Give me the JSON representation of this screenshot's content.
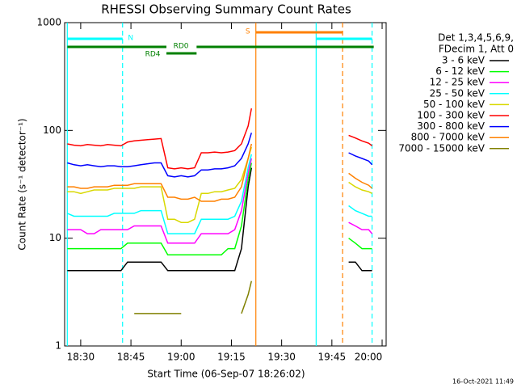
{
  "chart_data": {
    "type": "line",
    "title": "RHESSI Observing Summary Count Rates",
    "x_label": "Start Time (06-Sep-07 18:26:02)",
    "y_label": "Count Rate (s⁻¹ detector⁻¹)",
    "legend_header": [
      "Det 1,3,4,5,6,9,",
      "FDecim 1, Att 0"
    ],
    "footer": "16-Oct-2021 11:49",
    "y_log": true,
    "ylim": [
      1,
      1000
    ],
    "yticks": [
      1,
      10,
      100,
      1000
    ],
    "xlim": [
      25.2,
      121.2
    ],
    "xticks": [
      {
        "value": 30,
        "label": "18:30"
      },
      {
        "value": 45,
        "label": "18:45"
      },
      {
        "value": 60,
        "label": "19:00"
      },
      {
        "value": 75,
        "label": "19:15"
      },
      {
        "value": 90,
        "label": "19:30"
      },
      {
        "value": 105,
        "label": "19:45"
      },
      {
        "value": 120,
        "label": "20:00"
      }
    ],
    "x": [
      26,
      28,
      30,
      32,
      34,
      36,
      38,
      40,
      42,
      44,
      46,
      48,
      50,
      52,
      54,
      56,
      58,
      60,
      62,
      64,
      66,
      68,
      70,
      72,
      74,
      76,
      78,
      80,
      81,
      90,
      110,
      112,
      114,
      116,
      117
    ],
    "series": [
      {
        "name": "3 - 6 keV",
        "color": "#000000",
        "values": [
          5,
          5,
          5,
          5,
          5,
          5,
          5,
          5,
          5,
          6,
          6,
          6,
          6,
          6,
          6,
          5,
          5,
          5,
          5,
          5,
          5,
          5,
          5,
          5,
          5,
          5,
          8,
          30,
          45,
          null,
          6,
          6,
          5,
          5,
          5
        ]
      },
      {
        "name": "6 - 12 keV",
        "color": "#00ff00",
        "values": [
          8,
          8,
          8,
          8,
          8,
          8,
          8,
          8,
          8,
          9,
          9,
          9,
          9,
          9,
          9,
          7,
          7,
          7,
          7,
          7,
          7,
          7,
          7,
          7,
          8,
          8,
          13,
          35,
          50,
          null,
          10,
          9,
          8,
          8,
          8
        ]
      },
      {
        "name": "12 - 25 keV",
        "color": "#ff00ff",
        "values": [
          12,
          12,
          12,
          11,
          11,
          12,
          12,
          12,
          12,
          12,
          13,
          13,
          13,
          13,
          13,
          9,
          9,
          9,
          9,
          9,
          11,
          11,
          11,
          11,
          11,
          12,
          18,
          40,
          55,
          null,
          14,
          13,
          12,
          12,
          11
        ]
      },
      {
        "name": "25 - 50 keV",
        "color": "#00ffff",
        "values": [
          17,
          16,
          16,
          16,
          16,
          16,
          16,
          17,
          17,
          17,
          17,
          18,
          18,
          18,
          18,
          11,
          11,
          11,
          11,
          11,
          15,
          15,
          15,
          15,
          15,
          16,
          22,
          45,
          60,
          null,
          20,
          18,
          17,
          16,
          16
        ]
      },
      {
        "name": "50 - 100 keV",
        "color": "#d8d800",
        "values": [
          27,
          27,
          26,
          27,
          28,
          28,
          28,
          29,
          29,
          29,
          29,
          30,
          30,
          30,
          30,
          15,
          15,
          14,
          14,
          15,
          26,
          26,
          27,
          27,
          28,
          29,
          35,
          55,
          70,
          null,
          33,
          30,
          28,
          27,
          26
        ]
      },
      {
        "name": "100 - 300 keV",
        "color": "#ff0000",
        "values": [
          75,
          73,
          72,
          74,
          73,
          72,
          74,
          73,
          72,
          78,
          80,
          81,
          82,
          83,
          84,
          45,
          44,
          45,
          44,
          45,
          62,
          62,
          63,
          62,
          63,
          65,
          75,
          110,
          160,
          null,
          90,
          85,
          80,
          76,
          72
        ]
      },
      {
        "name": "300 - 800 keV",
        "color": "#0000ff",
        "values": [
          50,
          48,
          47,
          48,
          47,
          46,
          47,
          47,
          46,
          46,
          47,
          48,
          49,
          50,
          50,
          38,
          37,
          38,
          37,
          38,
          43,
          43,
          44,
          44,
          45,
          47,
          55,
          75,
          95,
          null,
          62,
          58,
          55,
          52,
          48
        ]
      },
      {
        "name": "800 - 7000 keV",
        "color": "#ff8000",
        "values": [
          30,
          30,
          29,
          29,
          30,
          30,
          30,
          31,
          31,
          31,
          32,
          32,
          32,
          32,
          32,
          24,
          24,
          23,
          23,
          24,
          22,
          22,
          22,
          23,
          23,
          24,
          30,
          55,
          75,
          null,
          40,
          36,
          33,
          31,
          29
        ]
      },
      {
        "name": "7000 - 15000 keV",
        "color": "#808000",
        "values": [
          null,
          null,
          null,
          null,
          null,
          null,
          null,
          null,
          null,
          null,
          2,
          2,
          2,
          2,
          2,
          2,
          2,
          2,
          null,
          null,
          null,
          null,
          null,
          null,
          null,
          null,
          2,
          3,
          4,
          null,
          null,
          null,
          null,
          null,
          null
        ]
      }
    ],
    "vlines": [
      {
        "x": 26,
        "color": "#00ffff",
        "dashed": false
      },
      {
        "x": 42.5,
        "color": "#00ffff",
        "dashed": true
      },
      {
        "x": 82.3,
        "color": "#ff8000",
        "dashed": false
      },
      {
        "x": 100.3,
        "color": "#00ffff",
        "dashed": false
      },
      {
        "x": 108.2,
        "color": "#ff8000",
        "dashed": true
      },
      {
        "x": 117,
        "color": "#00ffff",
        "dashed": true
      }
    ],
    "flags": [
      {
        "label": "N",
        "color": "#00ffff",
        "segments": [
          [
            26,
            42.5
          ],
          [
            100.3,
            117
          ]
        ]
      },
      {
        "label": "S",
        "color": "#ff8000",
        "segments": [
          [
            82.3,
            108.2
          ]
        ]
      },
      {
        "label": "RD0",
        "color": "#008000",
        "segments": [
          [
            26,
            55.6
          ],
          [
            64.6,
            117.5
          ]
        ]
      },
      {
        "label": "RD4",
        "color": "#008000",
        "segments": [
          [
            55.6,
            64.6
          ]
        ]
      }
    ]
  }
}
